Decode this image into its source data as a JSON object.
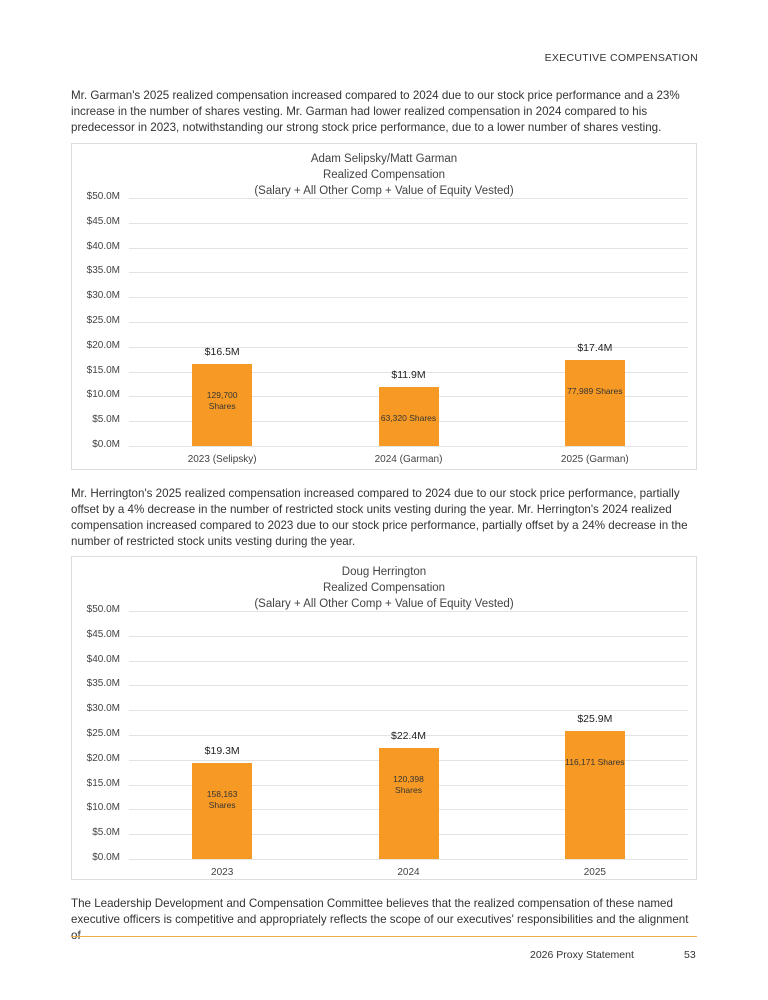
{
  "header": {
    "section": "EXECUTIVE COMPENSATION"
  },
  "paragraphs": [
    "Mr. Garman's 2025 realized compensation increased compared to 2024 due to our stock price performance and a 23% increase in the number of shares vesting. Mr. Garman had lower realized compensation in 2024 compared to his predecessor in 2023, notwithstanding our strong stock price performance, due to a lower number of shares vesting.",
    "Mr. Herrington's 2025 realized compensation increased compared to 2024 due to our stock price performance, partially offset by a 4% decrease in the number of restricted stock units vesting during the year. Mr. Herrington's 2024 realized compensation increased compared to 2023 due to our stock price performance, partially offset by a 24% decrease in the number of restricted stock units vesting during the year.",
    "The Leadership Development and Compensation Committee believes that the realized compensation of these named executive officers is competitive and appropriately reflects the scope of our executives' responsibilities and the alignment of"
  ],
  "chart_data": [
    {
      "type": "bar",
      "title": "Adam Selipsky/Matt Garman",
      "subtitle": "Realized Compensation",
      "note": "(Salary + All Other Comp + Value of Equity Vested)",
      "categories": [
        "2023 (Selipsky)",
        "2024 (Garman)",
        "2025 (Garman)"
      ],
      "values": [
        16.5,
        11.9,
        17.4
      ],
      "value_labels": [
        "$16.5M",
        "$11.9M",
        "$17.4M"
      ],
      "annotations": [
        "129,700 Shares",
        "63,320 Shares",
        "77,989 Shares"
      ],
      "color": "#f79a25",
      "ylim": [
        0,
        50
      ],
      "yticks": [
        {
          "value": 0,
          "label": "$0.0M"
        },
        {
          "value": 5,
          "label": "$5.0M"
        },
        {
          "value": 10,
          "label": "$10.0M"
        },
        {
          "value": 15,
          "label": "$15.0M"
        },
        {
          "value": 20,
          "label": "$20.0M"
        },
        {
          "value": 25,
          "label": "$25.0M"
        },
        {
          "value": 30,
          "label": "$30.0M"
        },
        {
          "value": 35,
          "label": "$35.0M"
        },
        {
          "value": 40,
          "label": "$40.0M"
        },
        {
          "value": 45,
          "label": "$45.0M"
        },
        {
          "value": 50,
          "label": "$50.0M"
        }
      ],
      "grid": true
    },
    {
      "type": "bar",
      "title": "Doug Herrington",
      "subtitle": "Realized Compensation",
      "note": "(Salary + All Other Comp + Value of Equity Vested)",
      "categories": [
        "2023",
        "2024",
        "2025"
      ],
      "values": [
        19.3,
        22.4,
        25.9
      ],
      "value_labels": [
        "$19.3M",
        "$22.4M",
        "$25.9M"
      ],
      "annotations": [
        "158,163 Shares",
        "120,398 Shares",
        "116,171 Shares"
      ],
      "color": "#f79a25",
      "ylim": [
        0,
        50
      ],
      "yticks": [
        {
          "value": 0,
          "label": "$0.0M"
        },
        {
          "value": 5,
          "label": "$5.0M"
        },
        {
          "value": 10,
          "label": "$10.0M"
        },
        {
          "value": 15,
          "label": "$15.0M"
        },
        {
          "value": 20,
          "label": "$20.0M"
        },
        {
          "value": 25,
          "label": "$25.0M"
        },
        {
          "value": 30,
          "label": "$30.0M"
        },
        {
          "value": 35,
          "label": "$35.0M"
        },
        {
          "value": 40,
          "label": "$40.0M"
        },
        {
          "value": 45,
          "label": "$45.0M"
        },
        {
          "value": 50,
          "label": "$50.0M"
        }
      ],
      "grid": true
    }
  ],
  "footer": {
    "text": "2026 Proxy Statement",
    "page": "53"
  }
}
